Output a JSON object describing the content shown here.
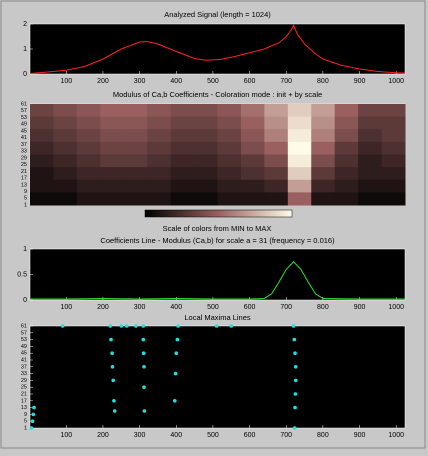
{
  "chart_data": [
    {
      "type": "line",
      "title": "Analyzed Signal (length = 1024)",
      "color": "#ff2020",
      "x": [
        1,
        50,
        100,
        150,
        200,
        250,
        300,
        320,
        350,
        400,
        450,
        480,
        520,
        560,
        600,
        640,
        680,
        700,
        715,
        720,
        730,
        750,
        780,
        800,
        850,
        900,
        950,
        1000,
        1024
      ],
      "values": [
        0.02,
        0.08,
        0.15,
        0.3,
        0.6,
        1.0,
        1.28,
        1.3,
        1.2,
        0.9,
        0.62,
        0.55,
        0.58,
        0.7,
        0.85,
        1.0,
        1.25,
        1.5,
        1.8,
        1.95,
        1.6,
        1.2,
        0.8,
        0.6,
        0.35,
        0.2,
        0.1,
        0.05,
        0.04
      ],
      "xlim": [
        1,
        1024
      ],
      "ylim": [
        0,
        2
      ],
      "yticks": [
        0,
        1,
        2
      ],
      "xticks": [
        100,
        200,
        300,
        400,
        500,
        600,
        700,
        800,
        900,
        1000
      ]
    },
    {
      "type": "heatmap",
      "title": "Modulus of Ca,b Coefficients - Coloration mode : init + by scale",
      "x": [
        32,
        96,
        160,
        224,
        288,
        352,
        416,
        480,
        544,
        608,
        672,
        736,
        800,
        864,
        928,
        992
      ],
      "scales": [
        61,
        53,
        45,
        37,
        29,
        21,
        13,
        5
      ],
      "values": [
        [
          0.35,
          0.4,
          0.45,
          0.5,
          0.5,
          0.45,
          0.4,
          0.4,
          0.45,
          0.55,
          0.7,
          0.85,
          0.7,
          0.5,
          0.35,
          0.35
        ],
        [
          0.3,
          0.35,
          0.4,
          0.45,
          0.45,
          0.4,
          0.35,
          0.35,
          0.4,
          0.5,
          0.65,
          0.9,
          0.65,
          0.45,
          0.3,
          0.3
        ],
        [
          0.25,
          0.3,
          0.35,
          0.4,
          0.4,
          0.35,
          0.3,
          0.3,
          0.35,
          0.45,
          0.6,
          0.95,
          0.6,
          0.4,
          0.25,
          0.3
        ],
        [
          0.2,
          0.25,
          0.3,
          0.35,
          0.35,
          0.3,
          0.25,
          0.25,
          0.3,
          0.4,
          0.5,
          1,
          0.5,
          0.3,
          0.2,
          0.25
        ],
        [
          0.15,
          0.2,
          0.25,
          0.3,
          0.3,
          0.25,
          0.2,
          0.2,
          0.25,
          0.3,
          0.4,
          0.95,
          0.4,
          0.25,
          0.15,
          0.2
        ],
        [
          0.1,
          0.15,
          0.2,
          0.2,
          0.2,
          0.2,
          0.15,
          0.15,
          0.2,
          0.25,
          0.3,
          0.85,
          0.3,
          0.2,
          0.15,
          0.15
        ],
        [
          0.1,
          0.1,
          0.15,
          0.15,
          0.15,
          0.15,
          0.1,
          0.1,
          0.15,
          0.15,
          0.2,
          0.7,
          0.2,
          0.15,
          0.1,
          0.1
        ],
        [
          0.05,
          0.05,
          0.1,
          0.1,
          0.1,
          0.1,
          0.05,
          0.05,
          0.1,
          0.1,
          0.1,
          0.5,
          0.1,
          0.1,
          0.05,
          0.05
        ]
      ],
      "ylim": [
        1,
        61
      ],
      "yticks": [
        1,
        5,
        9,
        13,
        17,
        21,
        25,
        29,
        33,
        37,
        41,
        45,
        49,
        53,
        57,
        61
      ],
      "colorbar_label": "Scale of colors from MIN to MAX"
    },
    {
      "type": "line",
      "title": "Coefficients Line - Modulus (Ca,b)  for scale a = 31  (frequency = 0.016)",
      "color": "#30e030",
      "x": [
        1,
        100,
        200,
        300,
        400,
        500,
        600,
        640,
        660,
        680,
        700,
        720,
        740,
        760,
        780,
        800,
        900,
        1000,
        1024
      ],
      "values": [
        0.02,
        0.02,
        0.03,
        0.02,
        0.03,
        0.02,
        0.02,
        0.03,
        0.12,
        0.35,
        0.6,
        0.75,
        0.6,
        0.35,
        0.12,
        0.03,
        0.02,
        0.02,
        0.02
      ],
      "xlim": [
        1,
        1024
      ],
      "ylim": [
        0,
        1
      ],
      "yticks": [
        0,
        0.5,
        1
      ],
      "xticks": [
        100,
        200,
        300,
        400,
        500,
        600,
        700,
        800,
        900,
        1000
      ]
    },
    {
      "type": "scatter",
      "title": "Local Maxima Lines",
      "color": "#20e0e0",
      "series": [
        {
          "x": [
            5,
            8,
            10,
            12
          ],
          "values": [
            1,
            5,
            9,
            13
          ]
        },
        {
          "x": [
            220,
            222,
            225,
            226,
            228,
            230,
            232
          ],
          "values": [
            61,
            53,
            45,
            37,
            29,
            17,
            11
          ]
        },
        {
          "x": [
            310,
            310,
            311,
            312,
            312,
            313
          ],
          "values": [
            61,
            53,
            45,
            37,
            25,
            11
          ]
        },
        {
          "x": [
            405,
            403,
            400,
            398,
            396
          ],
          "values": [
            61,
            53,
            45,
            33,
            17
          ]
        },
        {
          "x": [
            720,
            722,
            724,
            726,
            726,
            725,
            724,
            723
          ],
          "values": [
            61,
            53,
            45,
            37,
            29,
            21,
            13,
            1
          ]
        },
        {
          "x": [
            90,
            250,
            265,
            290,
            510,
            550
          ],
          "values": [
            61,
            61,
            61,
            61,
            61,
            61
          ]
        }
      ],
      "xlim": [
        1,
        1024
      ],
      "ylim": [
        1,
        61
      ],
      "yticks": [
        1,
        5,
        9,
        13,
        17,
        21,
        25,
        29,
        33,
        37,
        41,
        45,
        49,
        53,
        57,
        61
      ],
      "xticks": [
        100,
        200,
        300,
        400,
        500,
        600,
        700,
        800,
        900,
        1000
      ]
    }
  ]
}
